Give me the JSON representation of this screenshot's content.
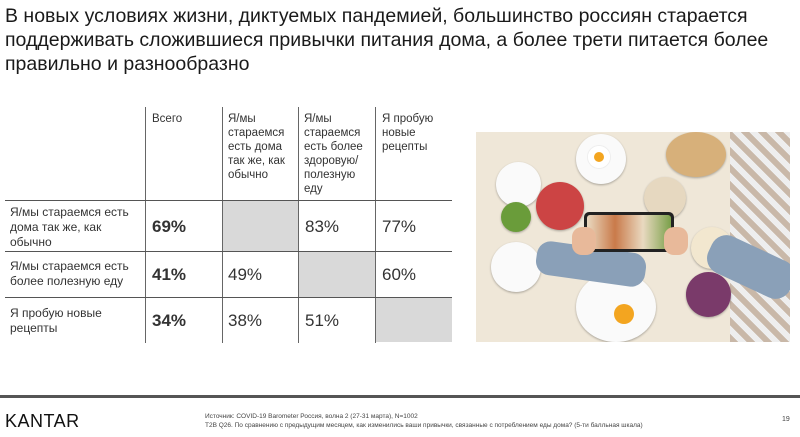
{
  "title": "В новых условиях жизни, диктуемых пандемией, большинство россиян старается поддерживать сложившиеся привычки питания дома, а более трети питается более правильно и разнообразно",
  "table": {
    "columns": [
      "Всего",
      "Я/мы стараемся есть дома так же, как обычно",
      "Я/мы стараемся есть более здоровую/ полезную еду",
      "Я пробую новые рецепты"
    ],
    "rows": [
      {
        "label": "Я/мы стараемся есть дома так же, как обычно",
        "values": [
          "69%",
          "",
          "83%",
          "77%"
        ]
      },
      {
        "label": "Я/мы стараемся есть более полезную еду",
        "values": [
          "41%",
          "49%",
          "",
          "60%"
        ]
      },
      {
        "label": "Я пробую новые рецепты",
        "values": [
          "34%",
          "38%",
          "51%",
          ""
        ]
      }
    ]
  },
  "image": {
    "subject": "food-table-photo-with-smartphone"
  },
  "footer": {
    "logo": "KANTAR",
    "source": "Источник: COVID-19 Barometer Россия, волна 2 (27-31 марта), N=1002",
    "question": "T2B Q26. По сравнению с предыдущим месяцем, как изменились ваши привычки, связанные с потреблением еды дома? (5-ти балльная шкала)",
    "page": "19"
  },
  "colors": {
    "empty_cell": "#d9d9d9",
    "divider": "#555555"
  }
}
